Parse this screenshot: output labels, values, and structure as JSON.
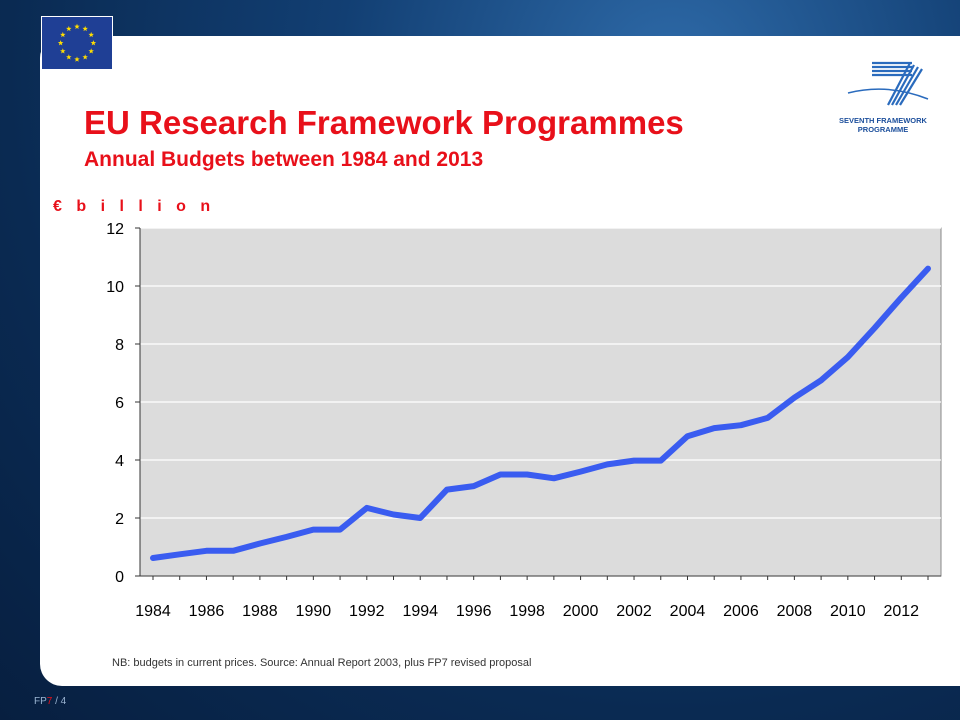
{
  "slide": {
    "title": "EU Research Framework Programmes",
    "subtitle": "Annual Budgets between 1984 and 2013",
    "y_unit_label": "€ b i l l i o n",
    "note": "NB: budgets in current prices. Source: Annual Report 2003, plus FP7 revised proposal",
    "footer_fp": "FP",
    "footer_num": "7",
    "footer_page": " / 4",
    "logo_text_line1": "SEVENTH FRAMEWORK",
    "logo_text_line2": "PROGRAMME"
  },
  "colors": {
    "title": "#e8101a",
    "line": "#3a5cf0",
    "plot_bg": "#dcdcdc",
    "eu_flag": "#1f3f95",
    "eu_stars": "#ffdd00"
  },
  "icons": {
    "eu_flag": "eu-flag-icon",
    "fp7_logo": "fp7-logo-icon"
  },
  "chart_data": {
    "type": "line",
    "title": "",
    "xlabel": "",
    "ylabel": "€ billion",
    "xlim": [
      1984,
      2013
    ],
    "ylim": [
      0,
      12
    ],
    "yticks": [
      0,
      2,
      4,
      6,
      8,
      10,
      12
    ],
    "xticks": [
      1984,
      1986,
      1988,
      1990,
      1992,
      1994,
      1996,
      1998,
      2000,
      2002,
      2004,
      2006,
      2008,
      2010,
      2012
    ],
    "grid": true,
    "legend": "none",
    "series": [
      {
        "x": [
          1984,
          1985,
          1986,
          1987,
          1988,
          1989,
          1990,
          1991,
          1992,
          1993,
          1994,
          1995,
          1996,
          1997,
          1998,
          1999,
          2000,
          2001,
          2002,
          2003,
          2004,
          2005,
          2006,
          2007,
          2008,
          2009,
          2010,
          2011,
          2012,
          2013
        ],
        "values": [
          0.62,
          0.75,
          0.87,
          0.87,
          1.12,
          1.35,
          1.6,
          1.6,
          2.35,
          2.12,
          2.0,
          2.98,
          3.1,
          3.5,
          3.5,
          3.37,
          3.6,
          3.85,
          3.98,
          3.98,
          4.82,
          5.1,
          5.2,
          5.45,
          6.15,
          6.75,
          7.55,
          8.55,
          9.6,
          10.6
        ]
      }
    ]
  }
}
